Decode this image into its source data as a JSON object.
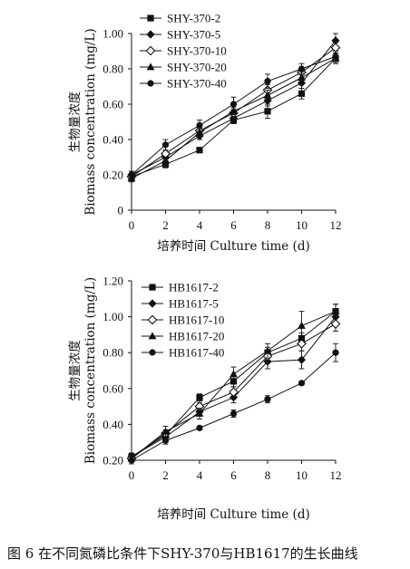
{
  "figure_caption": "图 6  在不同氮磷比条件下SHY-370与HB1617的生长曲线",
  "chart_data": [
    {
      "type": "line",
      "panel": "top",
      "xlabel": "培养时间 Culture time (d)",
      "ylabel_cn": "生物量浓度",
      "ylabel_en": "Biomass concentration (mg/L)",
      "x": [
        0,
        2,
        4,
        6,
        8,
        10,
        12
      ],
      "xticks": [
        "0",
        "2",
        "4",
        "6",
        "8",
        "10",
        "12"
      ],
      "ylim": [
        0,
        1.0
      ],
      "yticks": [
        "0",
        "0.20",
        "0.40",
        "0.60",
        "0.80",
        "1.00"
      ],
      "legend_position": "top-left",
      "series": [
        {
          "name": "SHY-370-2",
          "marker": "square",
          "values": [
            0.19,
            0.26,
            0.34,
            0.51,
            0.56,
            0.66,
            0.86
          ],
          "errors": [
            0.02,
            0.02,
            0.01,
            0.02,
            0.04,
            0.03,
            0.03
          ]
        },
        {
          "name": "SHY-370-5",
          "marker": "diamond",
          "values": [
            0.2,
            0.3,
            0.42,
            0.52,
            0.62,
            0.72,
            0.96
          ],
          "errors": [
            0.02,
            0.02,
            0.02,
            0.02,
            0.03,
            0.03,
            0.04
          ]
        },
        {
          "name": "SHY-370-10",
          "marker": "diamond-open",
          "values": [
            0.19,
            0.32,
            0.45,
            0.55,
            0.68,
            0.78,
            0.92
          ],
          "errors": [
            0.02,
            0.02,
            0.02,
            0.02,
            0.03,
            0.03,
            0.03
          ]
        },
        {
          "name": "SHY-370-20",
          "marker": "triangle",
          "values": [
            0.18,
            0.28,
            0.44,
            0.56,
            0.65,
            0.75,
            0.86
          ],
          "errors": [
            0.02,
            0.02,
            0.02,
            0.02,
            0.03,
            0.03,
            0.03
          ]
        },
        {
          "name": "SHY-370-40",
          "marker": "circle",
          "values": [
            0.2,
            0.37,
            0.48,
            0.6,
            0.73,
            0.8,
            0.87
          ],
          "errors": [
            0.02,
            0.03,
            0.03,
            0.04,
            0.04,
            0.03,
            0.03
          ]
        }
      ]
    },
    {
      "type": "line",
      "panel": "bottom",
      "xlabel": "培养时间 Culture time (d)",
      "ylabel_cn": "生物量浓度",
      "ylabel_en": "Biomass concentration (mg/L)",
      "x": [
        0,
        2,
        4,
        6,
        8,
        10,
        12
      ],
      "xticks": [
        "0",
        "2",
        "4",
        "6",
        "8",
        "10",
        "12"
      ],
      "ylim": [
        0.2,
        1.2
      ],
      "yticks": [
        "0.20",
        "0.40",
        "0.60",
        "0.80",
        "1.00",
        "1.20"
      ],
      "legend_position": "top-left",
      "series": [
        {
          "name": "HB1617-2",
          "marker": "square",
          "values": [
            0.22,
            0.34,
            0.55,
            0.64,
            0.8,
            0.88,
            1.03
          ],
          "errors": [
            0.02,
            0.02,
            0.02,
            0.03,
            0.03,
            0.03,
            0.04
          ]
        },
        {
          "name": "HB1617-5",
          "marker": "diamond",
          "values": [
            0.22,
            0.33,
            0.47,
            0.55,
            0.75,
            0.76,
            1.0
          ],
          "errors": [
            0.02,
            0.02,
            0.02,
            0.03,
            0.04,
            0.05,
            0.04
          ]
        },
        {
          "name": "HB1617-10",
          "marker": "diamond-open",
          "values": [
            0.21,
            0.35,
            0.5,
            0.58,
            0.78,
            0.85,
            0.96
          ],
          "errors": [
            0.02,
            0.02,
            0.02,
            0.03,
            0.03,
            0.04,
            0.04
          ]
        },
        {
          "name": "HB1617-20",
          "marker": "triangle",
          "values": [
            0.21,
            0.36,
            0.46,
            0.68,
            0.81,
            0.95,
            1.03
          ],
          "errors": [
            0.02,
            0.03,
            0.03,
            0.04,
            0.04,
            0.08,
            0.04
          ]
        },
        {
          "name": "HB1617-40",
          "marker": "circle",
          "values": [
            0.2,
            0.31,
            0.38,
            0.46,
            0.54,
            0.63,
            0.8
          ],
          "errors": [
            0.02,
            0.02,
            0.01,
            0.02,
            0.02,
            0.01,
            0.05
          ]
        }
      ]
    }
  ]
}
